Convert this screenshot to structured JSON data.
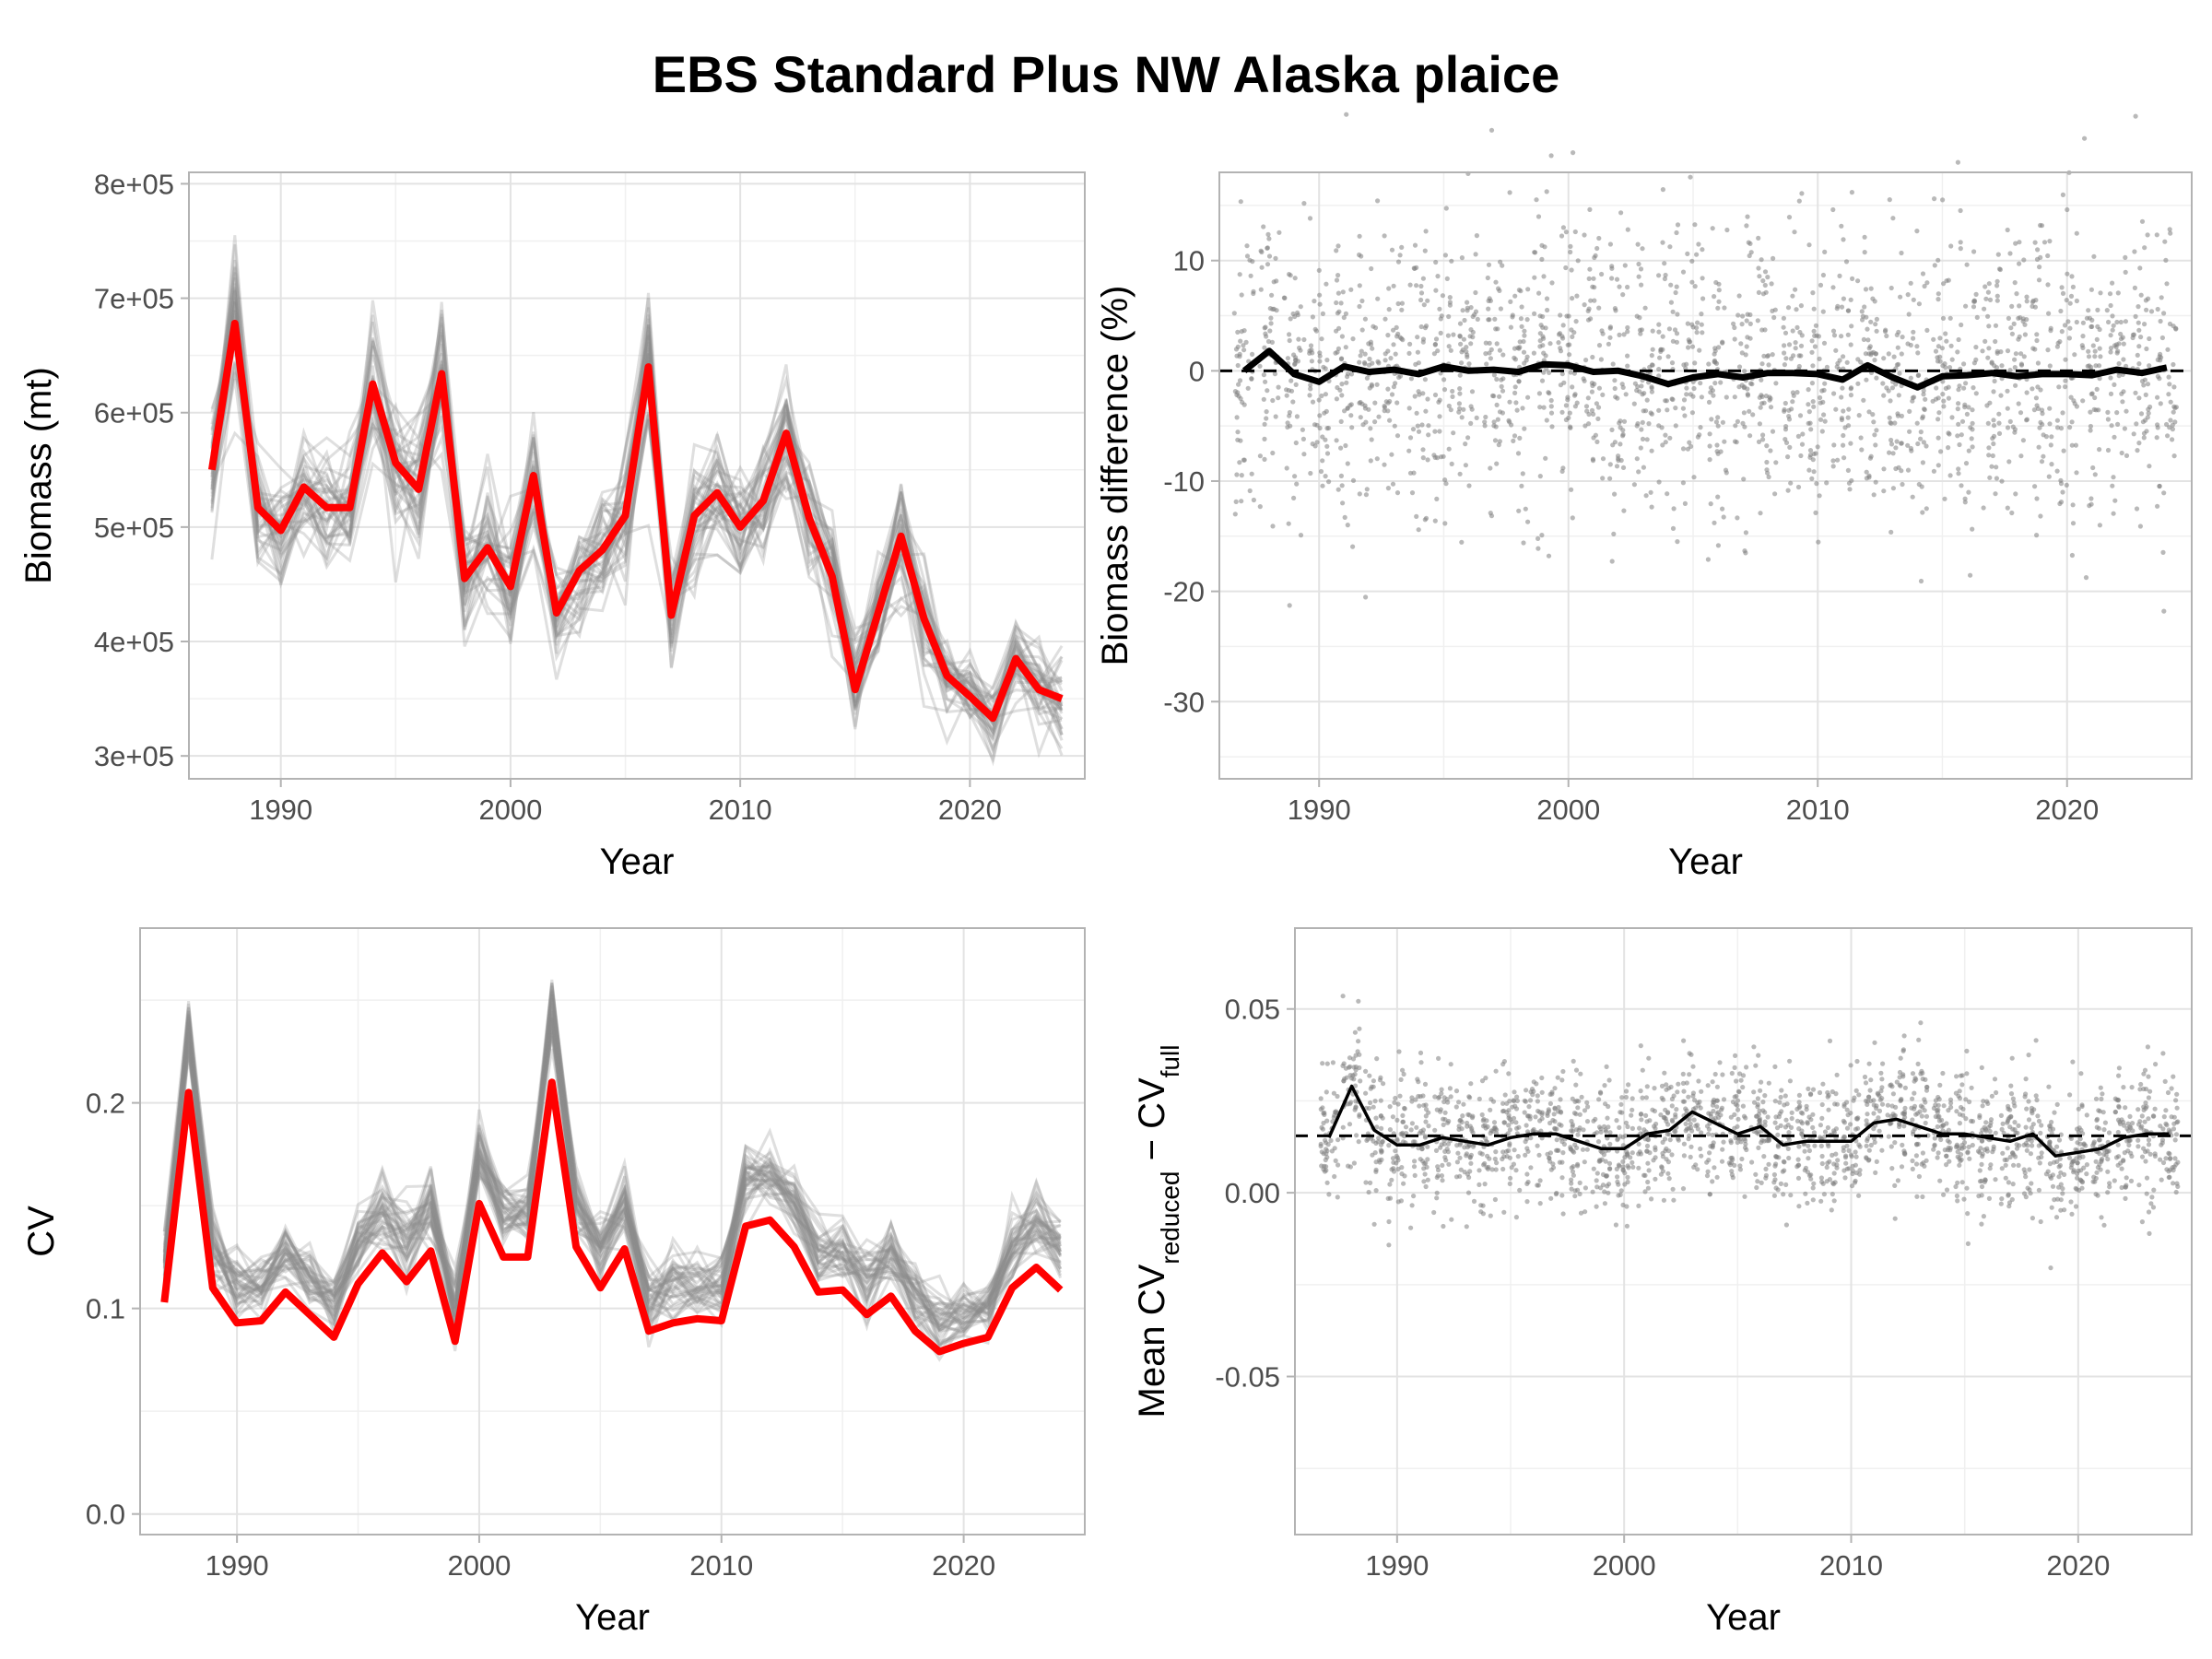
{
  "title": "EBS Standard Plus NW Alaska plaice",
  "chart_data": [
    {
      "id": "biomass",
      "type": "line",
      "xlabel": "Year",
      "ylabel": "Biomass (mt)",
      "xlim": [
        1986,
        2025
      ],
      "ylim": [
        280000,
        810000
      ],
      "x_ticks": [
        1990,
        2000,
        2010,
        2020
      ],
      "y_ticks": [
        300000,
        400000,
        500000,
        600000,
        700000,
        800000
      ],
      "y_tick_labels": [
        "3e+05",
        "4e+05",
        "5e+05",
        "6e+05",
        "7e+05",
        "8e+05"
      ],
      "main_color": "#ff0000",
      "replicate_color": "#8c8c8c",
      "x": [
        1987,
        1988,
        1989,
        1990,
        1991,
        1992,
        1993,
        1994,
        1995,
        1996,
        1997,
        1998,
        1999,
        2000,
        2001,
        2002,
        2003,
        2004,
        2005,
        2006,
        2007,
        2008,
        2009,
        2010,
        2011,
        2012,
        2013,
        2014,
        2015,
        2016,
        2017,
        2018,
        2019,
        2020,
        2021,
        2022,
        2023,
        2024
      ],
      "full": [
        550000,
        678000,
        517000,
        497000,
        535000,
        517000,
        517000,
        625000,
        556000,
        533000,
        634000,
        455000,
        482000,
        448000,
        545000,
        425000,
        462000,
        480000,
        510000,
        640000,
        423000,
        510000,
        530000,
        500000,
        523000,
        582000,
        508000,
        457000,
        358000,
        425000,
        492000,
        420000,
        370000,
        352000,
        333000,
        385000,
        358000,
        350000
      ]
    },
    {
      "id": "biomass-difference",
      "type": "scatter",
      "xlabel": "Year",
      "ylabel": "Biomass difference (%)",
      "xlim": [
        1986,
        2025
      ],
      "ylim": [
        -37,
        18
      ],
      "x_ticks": [
        1990,
        2000,
        2010,
        2020
      ],
      "y_ticks": [
        -30,
        -20,
        -10,
        0,
        10
      ],
      "y_tick_labels": [
        "-30",
        "-20",
        "-10",
        "0",
        "10"
      ],
      "reference_line": 0,
      "point_color": "#808080",
      "line_color": "#000000",
      "x": [
        1987,
        1988,
        1989,
        1990,
        1991,
        1992,
        1993,
        1994,
        1995,
        1996,
        1997,
        1998,
        1999,
        2000,
        2001,
        2002,
        2003,
        2004,
        2005,
        2006,
        2007,
        2008,
        2009,
        2010,
        2011,
        2012,
        2013,
        2014,
        2015,
        2016,
        2017,
        2018,
        2019,
        2020,
        2021,
        2022,
        2023,
        2024
      ],
      "mean": [
        0,
        1.8,
        -0.3,
        -1.0,
        0.4,
        -0.1,
        0.1,
        -0.3,
        0.4,
        0.0,
        0.1,
        -0.1,
        0.6,
        0.5,
        -0.1,
        0.0,
        -0.5,
        -1.2,
        -0.6,
        -0.3,
        -0.6,
        -0.2,
        -0.2,
        -0.3,
        -0.8,
        0.5,
        -0.6,
        -1.5,
        -0.5,
        -0.4,
        -0.2,
        -0.5,
        -0.3,
        -0.3,
        -0.4,
        0.1,
        -0.2,
        0.3
      ]
    },
    {
      "id": "cv",
      "type": "line",
      "xlabel": "Year",
      "ylabel": "CV",
      "xlim": [
        1986,
        2025
      ],
      "ylim": [
        -0.01,
        0.285
      ],
      "x_ticks": [
        1990,
        2000,
        2010,
        2020
      ],
      "y_ticks": [
        0.0,
        0.1,
        0.2
      ],
      "y_tick_labels": [
        "0.0",
        "0.1",
        "0.2"
      ],
      "main_color": "#ff0000",
      "replicate_color": "#8c8c8c",
      "x": [
        1987,
        1988,
        1989,
        1990,
        1991,
        1992,
        1993,
        1994,
        1995,
        1996,
        1997,
        1998,
        1999,
        2000,
        2001,
        2002,
        2003,
        2004,
        2005,
        2006,
        2007,
        2008,
        2009,
        2010,
        2011,
        2012,
        2013,
        2014,
        2015,
        2016,
        2017,
        2018,
        2019,
        2020,
        2021,
        2022,
        2023,
        2024
      ],
      "full": [
        0.103,
        0.205,
        0.11,
        0.093,
        0.094,
        0.108,
        0.097,
        0.086,
        0.112,
        0.127,
        0.113,
        0.128,
        0.084,
        0.151,
        0.125,
        0.125,
        0.21,
        0.13,
        0.11,
        0.129,
        0.089,
        0.093,
        0.095,
        0.094,
        0.14,
        0.143,
        0.13,
        0.108,
        0.109,
        0.097,
        0.106,
        0.089,
        0.079,
        0.083,
        0.086,
        0.11,
        0.12,
        0.109
      ]
    },
    {
      "id": "mean-cv-difference",
      "type": "scatter",
      "xlabel": "Year",
      "ylabel_parts": [
        "Mean CV",
        "reduced",
        " − CV",
        "full"
      ],
      "xlim": [
        1985.5,
        2025
      ],
      "ylim": [
        -0.093,
        0.072
      ],
      "x_ticks": [
        1990,
        2000,
        2010,
        2020
      ],
      "y_ticks": [
        -0.05,
        0.0,
        0.05
      ],
      "y_tick_labels": [
        "-0.05",
        "0.00",
        "0.05"
      ],
      "reference_line": 0.0155,
      "point_color": "#808080",
      "line_color": "#000000",
      "x": [
        1987,
        1988,
        1989,
        1990,
        1991,
        1992,
        1993,
        1994,
        1995,
        1996,
        1997,
        1998,
        1999,
        2000,
        2001,
        2002,
        2003,
        2004,
        2005,
        2006,
        2007,
        2008,
        2009,
        2010,
        2011,
        2012,
        2013,
        2014,
        2015,
        2016,
        2017,
        2018,
        2019,
        2020,
        2021,
        2022,
        2023,
        2024
      ],
      "mean": [
        0.015,
        0.029,
        0.017,
        0.013,
        0.013,
        0.015,
        0.014,
        0.013,
        0.015,
        0.016,
        0.016,
        0.014,
        0.012,
        0.012,
        0.016,
        0.017,
        0.022,
        0.019,
        0.016,
        0.018,
        0.013,
        0.014,
        0.014,
        0.014,
        0.019,
        0.02,
        0.018,
        0.016,
        0.016,
        0.015,
        0.014,
        0.016,
        0.01,
        0.011,
        0.012,
        0.015,
        0.016,
        0.016
      ]
    }
  ]
}
